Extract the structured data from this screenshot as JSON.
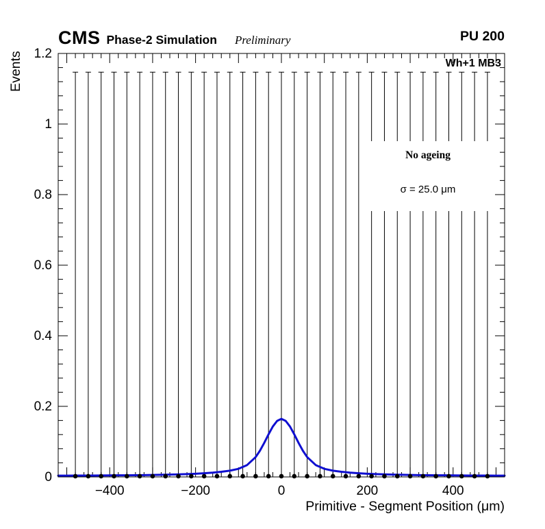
{
  "header": {
    "experiment": "CMS",
    "label": "Phase-2 Simulation",
    "sublabel": "Preliminary",
    "right_label": "PU 200"
  },
  "plot": {
    "region_label": "Wh+1 MB3",
    "legend": {
      "title": "No ageing",
      "sigma_label": "σ = 25.0 μm"
    }
  },
  "chart_data": {
    "type": "line",
    "title": "",
    "xlabel": "Primitive - Segment Position (μm)",
    "ylabel": "Events",
    "xlim": [
      -520,
      520
    ],
    "ylim": [
      0,
      1.2
    ],
    "grid": false,
    "x_major_step": 100,
    "x_minor_step": 20,
    "x_label_ticks": [
      -400,
      -200,
      0,
      200,
      400
    ],
    "x_tick_labels": [
      "−400",
      "−200",
      "0",
      "200",
      "400"
    ],
    "y_major_ticks": [
      0,
      0.2,
      0.4,
      0.6,
      0.8,
      1,
      1.2
    ],
    "y_tick_labels": [
      "0",
      "0.2",
      "0.4",
      "0.6",
      "0.8",
      "1",
      "1.2"
    ],
    "y_minor_step": 0.04,
    "legend_position": "upper-right",
    "series": [
      {
        "name": "data-points",
        "type": "errorbar",
        "color": "#000000",
        "marker": "circle",
        "marker_size": 3.3,
        "cap_halfwidth": 4,
        "y_err_top": 1.147,
        "x": [
          -480,
          -450,
          -420,
          -390,
          -360,
          -330,
          -300,
          -270,
          -240,
          -210,
          -180,
          -150,
          -120,
          -90,
          -60,
          -30,
          0,
          30,
          60,
          90,
          120,
          150,
          180,
          210,
          240,
          270,
          300,
          330,
          360,
          390,
          420,
          450,
          480
        ],
        "y": [
          0.002,
          0.002,
          0.002,
          0.002,
          0.002,
          0.002,
          0.002,
          0.002,
          0.002,
          0.002,
          0.002,
          0.002,
          0.002,
          0.002,
          0.002,
          0.002,
          0.002,
          0.002,
          0.002,
          0.002,
          0.002,
          0.002,
          0.002,
          0.002,
          0.002,
          0.002,
          0.002,
          0.002,
          0.002,
          0.002,
          0.002,
          0.002,
          0.002
        ]
      },
      {
        "name": "fit-curve",
        "type": "line",
        "color": "#0f0fd0",
        "width": 3,
        "x": [
          -520,
          -500,
          -480,
          -460,
          -440,
          -420,
          -400,
          -380,
          -360,
          -340,
          -320,
          -300,
          -280,
          -260,
          -240,
          -220,
          -200,
          -180,
          -160,
          -140,
          -120,
          -100,
          -80,
          -60,
          -50,
          -40,
          -30,
          -20,
          -10,
          0,
          10,
          20,
          30,
          40,
          50,
          60,
          80,
          100,
          120,
          140,
          160,
          180,
          200,
          220,
          240,
          260,
          280,
          300,
          320,
          340,
          360,
          380,
          400,
          420,
          440,
          460,
          480,
          500,
          520
        ],
        "y": [
          0.0036,
          0.0037,
          0.0038,
          0.0039,
          0.004,
          0.0041,
          0.0043,
          0.0045,
          0.0047,
          0.0049,
          0.0052,
          0.0056,
          0.006,
          0.0066,
          0.0072,
          0.008,
          0.009,
          0.0104,
          0.0121,
          0.0145,
          0.0177,
          0.023,
          0.0336,
          0.0562,
          0.0743,
          0.0965,
          0.1206,
          0.1428,
          0.1587,
          0.1645,
          0.1587,
          0.1428,
          0.1206,
          0.0965,
          0.0743,
          0.0562,
          0.0336,
          0.023,
          0.0177,
          0.0145,
          0.0121,
          0.0104,
          0.009,
          0.008,
          0.0072,
          0.0066,
          0.006,
          0.0056,
          0.0052,
          0.0049,
          0.0047,
          0.0045,
          0.0043,
          0.0041,
          0.004,
          0.0039,
          0.0038,
          0.0037,
          0.0036
        ]
      }
    ]
  }
}
